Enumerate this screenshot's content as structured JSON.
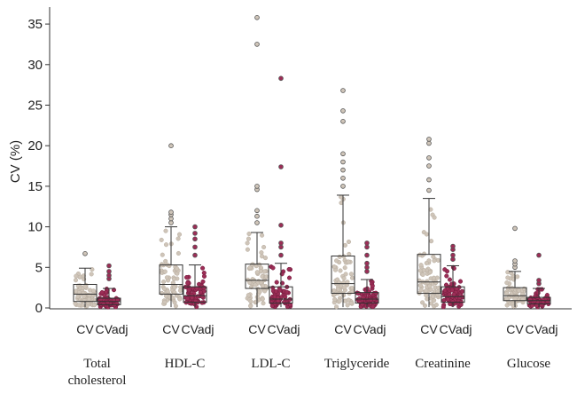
{
  "chart_data": {
    "type": "box",
    "title": "",
    "ylabel": "CV (%)",
    "xlabel": "",
    "ylim": [
      0,
      37
    ],
    "yticks": [
      0,
      5,
      10,
      15,
      20,
      25,
      30,
      35
    ],
    "grid": false,
    "legend": "none",
    "subcategories": [
      "CV",
      "CVadj"
    ],
    "series_colors": {
      "CV": "#cfc5b9",
      "CVadj": "#9c2d56"
    },
    "groups": [
      {
        "label": "Total\ncholesterol",
        "boxes": [
          {
            "name": "CV",
            "min": 0.1,
            "q1": 0.8,
            "median": 1.7,
            "q3": 2.9,
            "max": 4.9,
            "outliers": [
              6.7
            ]
          },
          {
            "name": "CVadj",
            "min": 0.1,
            "q1": 0.4,
            "median": 0.8,
            "q3": 1.2,
            "max": 2.4,
            "outliers": [
              3.6,
              4.0,
              4.5,
              5.2
            ]
          }
        ]
      },
      {
        "label": "HDL-C",
        "boxes": [
          {
            "name": "CV",
            "min": 0.1,
            "q1": 1.7,
            "median": 2.9,
            "q3": 5.3,
            "max": 10.0,
            "outliers": [
              10.5,
              11.0,
              11.5,
              11.8,
              20.0
            ]
          },
          {
            "name": "CVadj",
            "min": 0.1,
            "q1": 0.7,
            "median": 1.5,
            "q3": 2.6,
            "max": 5.3,
            "outliers": [
              6.5,
              7.5,
              8.5,
              9.2,
              10.0
            ]
          }
        ]
      },
      {
        "label": "LDL-C",
        "boxes": [
          {
            "name": "CV",
            "min": 0.1,
            "q1": 2.4,
            "median": 3.4,
            "q3": 5.4,
            "max": 9.3,
            "outliers": [
              10.5,
              11.3,
              12.0,
              14.6,
              15.0,
              32.5,
              35.8
            ]
          },
          {
            "name": "CVadj",
            "min": 0.1,
            "q1": 0.6,
            "median": 1.1,
            "q3": 2.6,
            "max": 5.5,
            "outliers": [
              6.5,
              7.5,
              8.0,
              10.2,
              17.4,
              28.3
            ]
          }
        ]
      },
      {
        "label": "Triglyceride",
        "boxes": [
          {
            "name": "CV",
            "min": 0.1,
            "q1": 1.8,
            "median": 3.0,
            "q3": 6.4,
            "max": 13.9,
            "outliers": [
              15.0,
              16.0,
              17.0,
              18.0,
              19.0,
              23.0,
              24.3,
              26.8
            ]
          },
          {
            "name": "CVadj",
            "min": 0.1,
            "q1": 0.6,
            "median": 1.1,
            "q3": 1.9,
            "max": 3.5,
            "outliers": [
              4.5,
              5.0,
              5.5,
              6.5,
              7.5,
              8.0
            ]
          }
        ]
      },
      {
        "label": "Creatinine",
        "boxes": [
          {
            "name": "CV",
            "min": 0.1,
            "q1": 1.8,
            "median": 3.2,
            "q3": 6.6,
            "max": 13.5,
            "outliers": [
              14.5,
              15.8,
              17.5,
              18.5,
              20.3,
              20.8
            ]
          },
          {
            "name": "CVadj",
            "min": 0.1,
            "q1": 0.7,
            "median": 1.4,
            "q3": 2.6,
            "max": 5.2,
            "outliers": [
              6.0,
              6.5,
              7.2,
              7.6
            ]
          }
        ]
      },
      {
        "label": "Glucose",
        "boxes": [
          {
            "name": "CV",
            "min": 0.1,
            "q1": 0.9,
            "median": 1.5,
            "q3": 2.5,
            "max": 4.5,
            "outliers": [
              5.0,
              5.4,
              5.8,
              9.8
            ]
          },
          {
            "name": "CVadj",
            "min": 0.1,
            "q1": 0.5,
            "median": 0.9,
            "q3": 1.3,
            "max": 2.4,
            "outliers": [
              3.0,
              3.4,
              6.5
            ]
          }
        ]
      }
    ]
  }
}
